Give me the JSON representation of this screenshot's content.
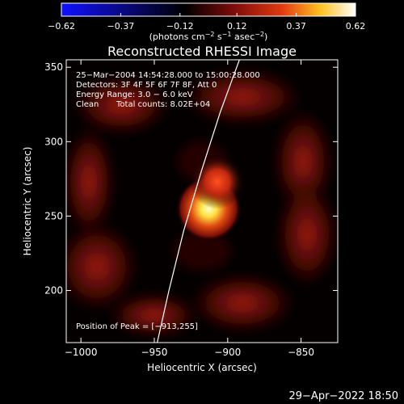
{
  "chart_data": {
    "type": "heatmap",
    "title": "Reconstructed RHESSI Image",
    "xlabel": "Heliocentric X (arcsec)",
    "ylabel": "Heliocentric Y (arcsec)",
    "xlim": [
      -1010,
      -825
    ],
    "ylim": [
      165,
      355
    ],
    "x_ticks": [
      -1000,
      -950,
      -900,
      -850
    ],
    "x_tick_labels": [
      "−1000",
      "−950",
      "−900",
      "−850"
    ],
    "y_ticks": [
      200,
      250,
      300,
      350
    ],
    "y_tick_labels": [
      "200",
      "250",
      "300",
      "350"
    ],
    "colorbar": {
      "range": [
        -0.62,
        0.62
      ],
      "ticks": [
        -0.62,
        -0.37,
        -0.12,
        0.12,
        0.37,
        0.62
      ],
      "tick_labels": [
        "−0.62",
        "−0.37",
        "−0.12",
        "0.12",
        "0.37",
        "0.62"
      ],
      "unit_prefix": "(photons cm",
      "unit_exp1": "−2",
      "unit_mid": " s",
      "unit_exp2": "−1",
      "unit_mid2": " asec",
      "unit_exp3": "−2",
      "unit_suffix": ")",
      "colors": [
        "#1010ff",
        "#000000",
        "#7a0a0a",
        "#e03a10",
        "#ffc020",
        "#ffffff"
      ]
    },
    "annotations": {
      "time_range": "25−Mar−2004 14:54:28.000 to 15:00:28.000",
      "detectors": "Detectors: 3F 4F 5F 6F 7F 8F, Att 0",
      "energy_range": "Energy Range: 3.0 − 6.0 keV",
      "method": "Clean",
      "total_counts": "Total counts: 8.02E+04",
      "peak_position": "Position of Peak = [−913,255]"
    },
    "sources": [
      {
        "x": -913,
        "y": 255,
        "intensity": 0.62,
        "sigma": 7
      },
      {
        "x": -907,
        "y": 273,
        "intensity": 0.42,
        "sigma": 7
      }
    ],
    "limb_line": [
      [
        -948,
        165
      ],
      [
        -940,
        200
      ],
      [
        -930,
        240
      ],
      [
        -918,
        280
      ],
      [
        -905,
        320
      ],
      [
        -892,
        355
      ]
    ],
    "timestamp": "29−Apr−2022 18:50"
  }
}
